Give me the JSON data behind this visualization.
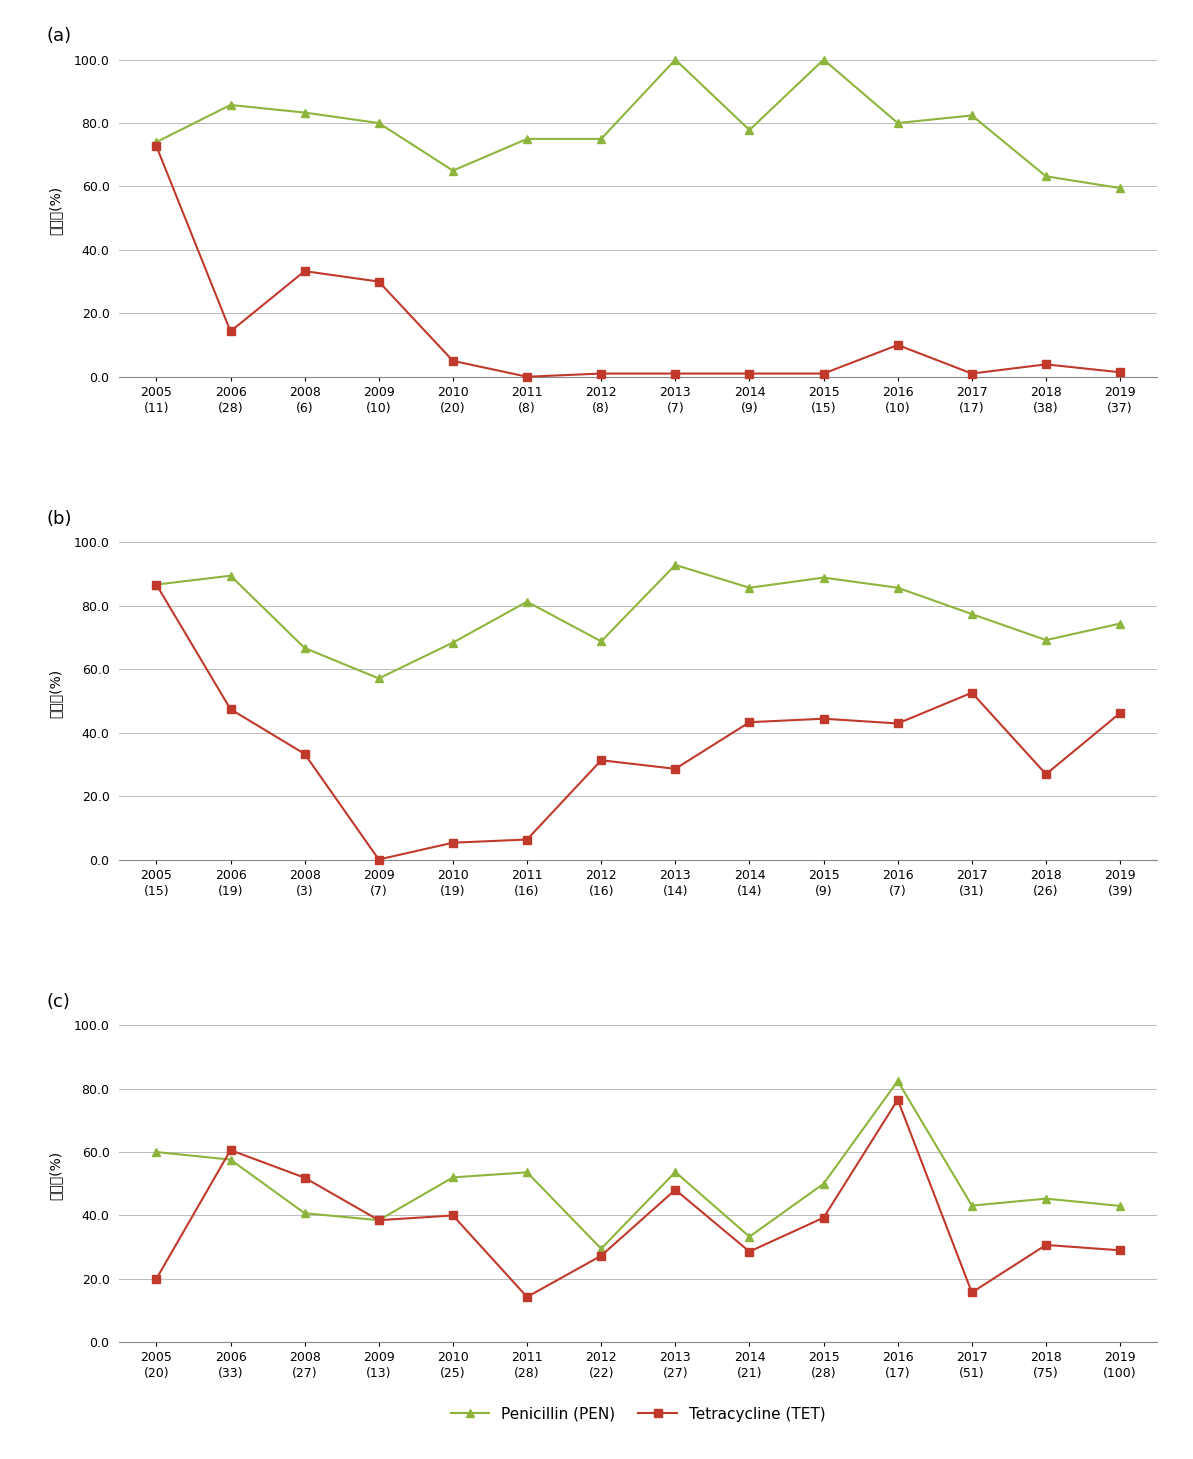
{
  "panels": [
    {
      "label": "(a)",
      "x_labels": [
        "2005\n(11)",
        "2006\n(28)",
        "2008\n(6)",
        "2009\n(10)",
        "2010\n(20)",
        "2011\n(8)",
        "2012\n(8)",
        "2013\n(7)",
        "2014\n(9)",
        "2015\n(15)",
        "2016\n(10)",
        "2017\n(17)",
        "2018\n(38)",
        "2019\n(37)"
      ],
      "pen_values": [
        74.0,
        85.7,
        83.3,
        80.0,
        65.0,
        75.0,
        75.0,
        100.0,
        77.8,
        100.0,
        80.0,
        82.4,
        63.2,
        59.5
      ],
      "tet_values": [
        72.7,
        14.3,
        33.3,
        30.0,
        5.0,
        0.0,
        1.0,
        1.0,
        1.0,
        1.0,
        10.0,
        1.0,
        3.9,
        1.4
      ]
    },
    {
      "label": "(b)",
      "x_labels": [
        "2005\n(15)",
        "2006\n(19)",
        "2008\n(3)",
        "2009\n(7)",
        "2010\n(19)",
        "2011\n(16)",
        "2012\n(16)",
        "2013\n(14)",
        "2014\n(14)",
        "2015\n(9)",
        "2016\n(7)",
        "2017\n(31)",
        "2018\n(26)",
        "2019\n(39)"
      ],
      "pen_values": [
        86.7,
        89.5,
        66.7,
        57.1,
        68.4,
        81.3,
        68.8,
        92.9,
        85.7,
        88.9,
        85.7,
        77.4,
        69.2,
        74.4
      ],
      "tet_values": [
        86.7,
        47.4,
        33.3,
        0.0,
        5.3,
        6.3,
        31.3,
        28.6,
        43.3,
        44.4,
        42.9,
        52.6,
        26.9,
        46.2
      ]
    },
    {
      "label": "(c)",
      "x_labels": [
        "2005\n(20)",
        "2006\n(33)",
        "2008\n(27)",
        "2009\n(13)",
        "2010\n(25)",
        "2011\n(28)",
        "2012\n(22)",
        "2013\n(27)",
        "2014\n(21)",
        "2015\n(28)",
        "2016\n(17)",
        "2017\n(51)",
        "2018\n(75)",
        "2019\n(100)"
      ],
      "pen_values": [
        60.0,
        57.6,
        40.7,
        38.5,
        52.0,
        53.6,
        29.5,
        53.7,
        33.3,
        50.0,
        82.4,
        43.1,
        45.3,
        43.0
      ],
      "tet_values": [
        20.0,
        60.6,
        51.9,
        38.5,
        40.0,
        14.3,
        27.3,
        48.1,
        28.6,
        39.3,
        76.5,
        15.7,
        30.7,
        29.0
      ]
    }
  ],
  "pen_color": "#8db53c",
  "tet_color": "#c0392b",
  "pen_marker": "^",
  "tet_marker": "s",
  "pen_label": "Penicillin (PEN)",
  "tet_label": "Tetracycline (TET)",
  "ylabel": "내성률(%)",
  "ylim": [
    0.0,
    105.0
  ],
  "yticks": [
    0.0,
    20.0,
    40.0,
    60.0,
    80.0,
    100.0
  ],
  "grid_color": "#bbbbbb",
  "bg_color": "#ffffff",
  "line_width": 1.5,
  "marker_size": 6,
  "fig_width": 11.93,
  "fig_height": 14.59,
  "dpi": 100
}
